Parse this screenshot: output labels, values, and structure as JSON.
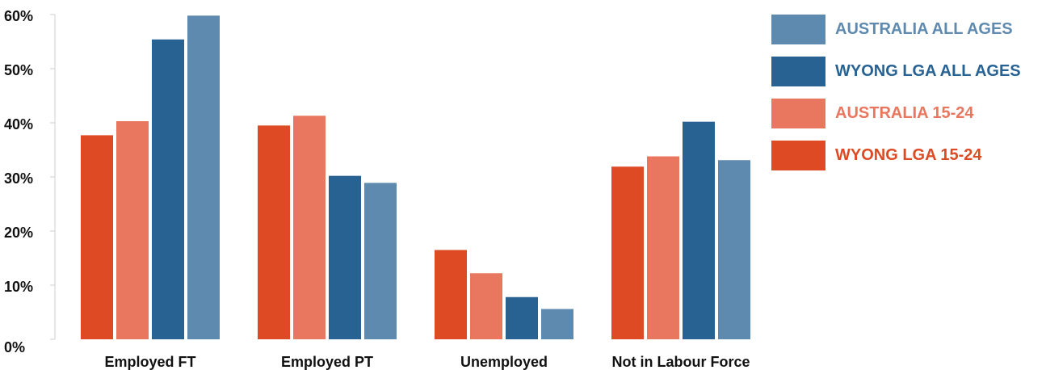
{
  "chart_data": {
    "type": "bar",
    "categories": [
      "Employed FT",
      "Employed PT",
      "Unemployed",
      "Not in Labour Force"
    ],
    "series": [
      {
        "name": "WYONG LGA 15-24",
        "color": "#de4a24",
        "values": [
          37.7,
          39.5,
          16.5,
          31.9
        ]
      },
      {
        "name": "AUSTRALIA 15-24",
        "color": "#e9765e",
        "values": [
          40.3,
          41.3,
          12.2,
          33.8
        ]
      },
      {
        "name": "WYONG LGA ALL AGES",
        "color": "#276293",
        "values": [
          55.4,
          30.2,
          7.8,
          40.2
        ]
      },
      {
        "name": "AUSTRALIA ALL AGES",
        "color": "#5f8aaf",
        "values": [
          59.8,
          28.9,
          5.6,
          33.1
        ]
      }
    ],
    "ylim": [
      0,
      60
    ],
    "yticks": [
      0,
      10,
      20,
      30,
      40,
      50,
      60
    ],
    "ytick_labels": [
      "0%",
      "10%",
      "20%",
      "30%",
      "40%",
      "50%",
      "60%"
    ],
    "legend_order": [
      "AUSTRALIA ALL AGES",
      "WYONG LGA ALL AGES",
      "AUSTRALIA 15-24",
      "WYONG LGA 15-24"
    ],
    "legend_position": "top-right",
    "grid": false
  }
}
